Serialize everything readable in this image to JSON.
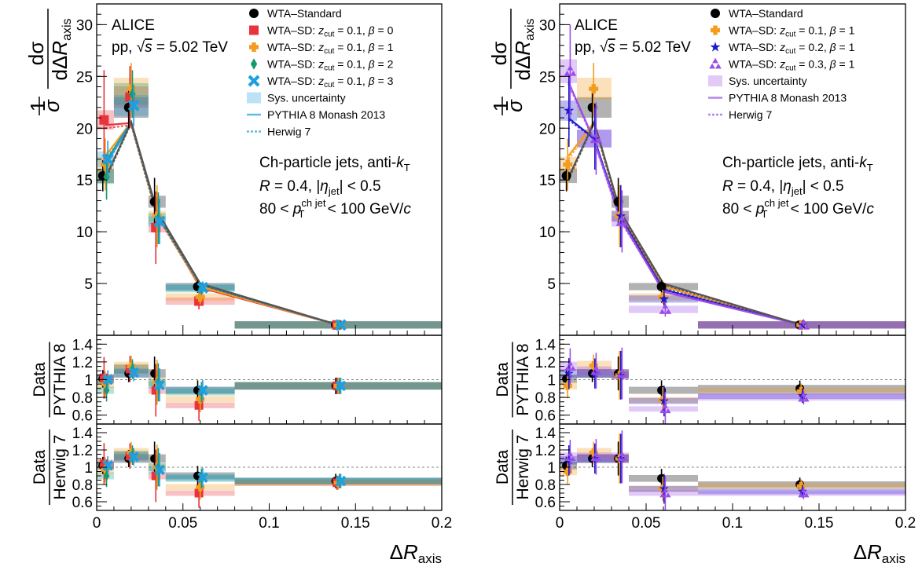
{
  "chart_data": [
    {
      "type": "scatter",
      "panel": "left",
      "experiment": "ALICE",
      "system": "pp, √s = 5.02 TeV",
      "annotation": [
        "Ch-particle jets, anti-kT",
        "R = 0.4, |ηjet| < 0.5",
        "80 < pTch jet < 100 GeV/c"
      ],
      "ylabel": "1/σ dσ/dΔRaxis",
      "xlabel": "ΔRaxis",
      "xlim": [
        0,
        0.2
      ],
      "ylim": [
        0,
        32
      ],
      "bin_edges": [
        0,
        0.01,
        0.03,
        0.04,
        0.08,
        0.2
      ],
      "x": [
        0.005,
        0.02,
        0.035,
        0.06,
        0.14
      ],
      "ratio_pythia": {
        "ylabel": "Data/PYTHIA 8",
        "ylim": [
          0.5,
          1.5
        ]
      },
      "ratio_herwig": {
        "ylabel": "Data/Herwig 7",
        "ylim": [
          0.5,
          1.5
        ]
      },
      "legend": [
        "WTA–Standard",
        "WTA–SD: zcut = 0.1, β = 0",
        "WTA–SD: zcut = 0.1, β = 1",
        "WTA–SD: zcut = 0.1, β = 2",
        "WTA–SD: zcut = 0.1, β = 3",
        "Sys. uncertainty",
        "PYTHIA 8 Monash 2013",
        "Herwig 7"
      ],
      "series": [
        {
          "name": "WTA–Standard",
          "color": "#000000",
          "marker": "circle",
          "values": [
            15.4,
            22.0,
            12.9,
            4.7,
            1.0
          ],
          "err": [
            1.5,
            2.0,
            2.3,
            0.6,
            0.1
          ],
          "pythia": [
            15.2,
            20.6,
            12.0,
            5.0,
            1.0
          ],
          "herwig": [
            15.0,
            20.5,
            11.7,
            4.9,
            1.0
          ],
          "ratio_pythia": [
            1.01,
            1.07,
            1.07,
            0.88,
            0.93
          ],
          "ratio_herwig": [
            1.02,
            1.1,
            1.1,
            0.9,
            0.84
          ]
        },
        {
          "name": "WTA–SD: zcut = 0.1, β = 0",
          "color": "#e8333b",
          "marker": "square",
          "values": [
            20.8,
            23.0,
            10.4,
            3.3,
            1.0
          ],
          "err": [
            4.8,
            3.0,
            3.5,
            0.8,
            0.1
          ],
          "pythia": [
            20.3,
            20.5,
            11.8,
            4.6,
            1.0
          ],
          "herwig": [
            20.0,
            20.3,
            11.5,
            4.7,
            1.0
          ],
          "ratio_pythia": [
            1.02,
            1.12,
            0.88,
            0.71,
            0.93
          ],
          "ratio_herwig": [
            1.04,
            1.13,
            0.9,
            0.7,
            0.82
          ]
        },
        {
          "name": "WTA–SD: zcut = 0.1, β = 1",
          "color": "#f39c1f",
          "marker": "cross",
          "values": [
            16.5,
            23.8,
            11.5,
            3.7,
            1.0
          ],
          "err": [
            2.5,
            2.5,
            3.0,
            0.7,
            0.1
          ],
          "pythia": [
            17.3,
            20.6,
            11.8,
            4.7,
            1.0
          ],
          "herwig": [
            17.0,
            20.4,
            11.5,
            4.8,
            1.0
          ],
          "ratio_pythia": [
            0.95,
            1.15,
            0.97,
            0.78,
            0.93
          ],
          "ratio_herwig": [
            0.97,
            1.17,
            1.0,
            0.77,
            0.82
          ]
        },
        {
          "name": "WTA–SD: zcut = 0.1, β = 2",
          "color": "#1a9a6c",
          "marker": "diamond",
          "values": [
            15.3,
            23.3,
            11.3,
            4.5,
            1.0
          ],
          "err": [
            2.2,
            2.3,
            2.5,
            0.6,
            0.1
          ],
          "pythia": [
            16.7,
            20.6,
            11.8,
            4.9,
            1.0
          ],
          "herwig": [
            16.5,
            20.4,
            11.6,
            4.9,
            1.0
          ],
          "ratio_pythia": [
            0.88,
            1.12,
            0.97,
            0.86,
            0.93
          ],
          "ratio_herwig": [
            0.9,
            1.14,
            1.0,
            0.87,
            0.84
          ]
        },
        {
          "name": "WTA–SD: zcut = 0.1, β = 3",
          "color": "#1e9fe0",
          "marker": "x",
          "values": [
            17.0,
            22.2,
            11.0,
            4.6,
            1.0
          ],
          "err": [
            1.8,
            2.0,
            2.2,
            0.6,
            0.1
          ],
          "pythia": [
            16.5,
            20.6,
            11.9,
            4.9,
            1.0
          ],
          "herwig": [
            16.3,
            20.5,
            11.7,
            4.9,
            1.0
          ],
          "ratio_pythia": [
            1.0,
            1.08,
            0.94,
            0.88,
            0.93
          ],
          "ratio_herwig": [
            1.02,
            1.12,
            0.97,
            0.88,
            0.84
          ]
        }
      ]
    },
    {
      "type": "scatter",
      "panel": "right",
      "experiment": "ALICE",
      "system": "pp, √s = 5.02 TeV",
      "annotation": [
        "Ch-particle jets, anti-kT",
        "R = 0.4, |ηjet| < 0.5",
        "80 < pTch jet < 100 GeV/c"
      ],
      "ylabel": "1/σ dσ/dΔRaxis",
      "xlabel": "ΔRaxis",
      "xlim": [
        0,
        0.2
      ],
      "ylim": [
        0,
        32
      ],
      "bin_edges": [
        0,
        0.01,
        0.03,
        0.04,
        0.08,
        0.2
      ],
      "x": [
        0.005,
        0.02,
        0.035,
        0.06,
        0.14
      ],
      "ratio_pythia": {
        "ylabel": "Data/PYTHIA 8",
        "ylim": [
          0.5,
          1.5
        ]
      },
      "ratio_herwig": {
        "ylabel": "Data/Herwig 7",
        "ylim": [
          0.5,
          1.5
        ]
      },
      "legend": [
        "WTA–Standard",
        "WTA–SD: zcut = 0.1, β = 1",
        "WTA–SD: zcut = 0.2, β = 1",
        "WTA–SD: zcut = 0.3, β = 1",
        "Sys. uncertainty",
        "PYTHIA 8 Monash 2013",
        "Herwig 7"
      ],
      "series": [
        {
          "name": "WTA–Standard",
          "color": "#000000",
          "marker": "circle",
          "values": [
            15.4,
            22.0,
            12.9,
            4.7,
            1.0
          ],
          "err": [
            1.5,
            2.0,
            2.3,
            0.6,
            0.1
          ],
          "pythia": [
            15.2,
            20.6,
            12.0,
            5.0,
            1.0
          ],
          "herwig": [
            15.0,
            20.5,
            11.7,
            4.9,
            1.0
          ],
          "ratio_pythia": [
            1.01,
            1.07,
            1.07,
            0.88,
            0.9
          ],
          "ratio_herwig": [
            1.02,
            1.1,
            1.1,
            0.87,
            0.8
          ]
        },
        {
          "name": "WTA–SD: zcut = 0.1, β = 1",
          "color": "#f39c1f",
          "marker": "cross",
          "values": [
            16.5,
            23.8,
            11.5,
            3.7,
            1.0
          ],
          "err": [
            2.5,
            2.5,
            3.0,
            0.7,
            0.1
          ],
          "pythia": [
            17.3,
            20.6,
            11.8,
            4.7,
            1.0
          ],
          "herwig": [
            17.0,
            20.4,
            11.5,
            4.8,
            1.0
          ],
          "ratio_pythia": [
            0.93,
            1.16,
            1.05,
            0.77,
            0.87
          ],
          "ratio_herwig": [
            0.95,
            1.17,
            1.1,
            0.75,
            0.78
          ]
        },
        {
          "name": "WTA–SD: zcut = 0.2, β = 1",
          "color": "#1a1acc",
          "marker": "star",
          "values": [
            21.7,
            19.0,
            11.5,
            3.5,
            1.0
          ],
          "err": [
            3.5,
            3.0,
            3.0,
            0.8,
            0.1
          ],
          "pythia": [
            21.0,
            19.0,
            11.5,
            4.4,
            1.0
          ],
          "herwig": [
            20.8,
            19.0,
            11.3,
            4.5,
            1.0
          ],
          "ratio_pythia": [
            1.07,
            1.07,
            1.05,
            0.76,
            0.82
          ],
          "ratio_herwig": [
            1.08,
            1.1,
            1.1,
            0.75,
            0.72
          ]
        },
        {
          "name": "WTA–SD: zcut = 0.3, β = 1",
          "color": "#9b4de8",
          "marker": "triangles",
          "values": [
            25.5,
            19.0,
            11.0,
            2.5,
            1.0
          ],
          "err": [
            4.5,
            3.5,
            3.0,
            0.7,
            0.1
          ],
          "pythia": [
            24.5,
            18.8,
            11.3,
            4.2,
            1.0
          ],
          "herwig": [
            24.3,
            18.7,
            11.1,
            4.3,
            1.0
          ],
          "ratio_pythia": [
            1.15,
            1.1,
            1.07,
            0.67,
            0.8
          ],
          "ratio_herwig": [
            1.12,
            1.12,
            1.12,
            0.7,
            0.7
          ]
        }
      ]
    }
  ]
}
